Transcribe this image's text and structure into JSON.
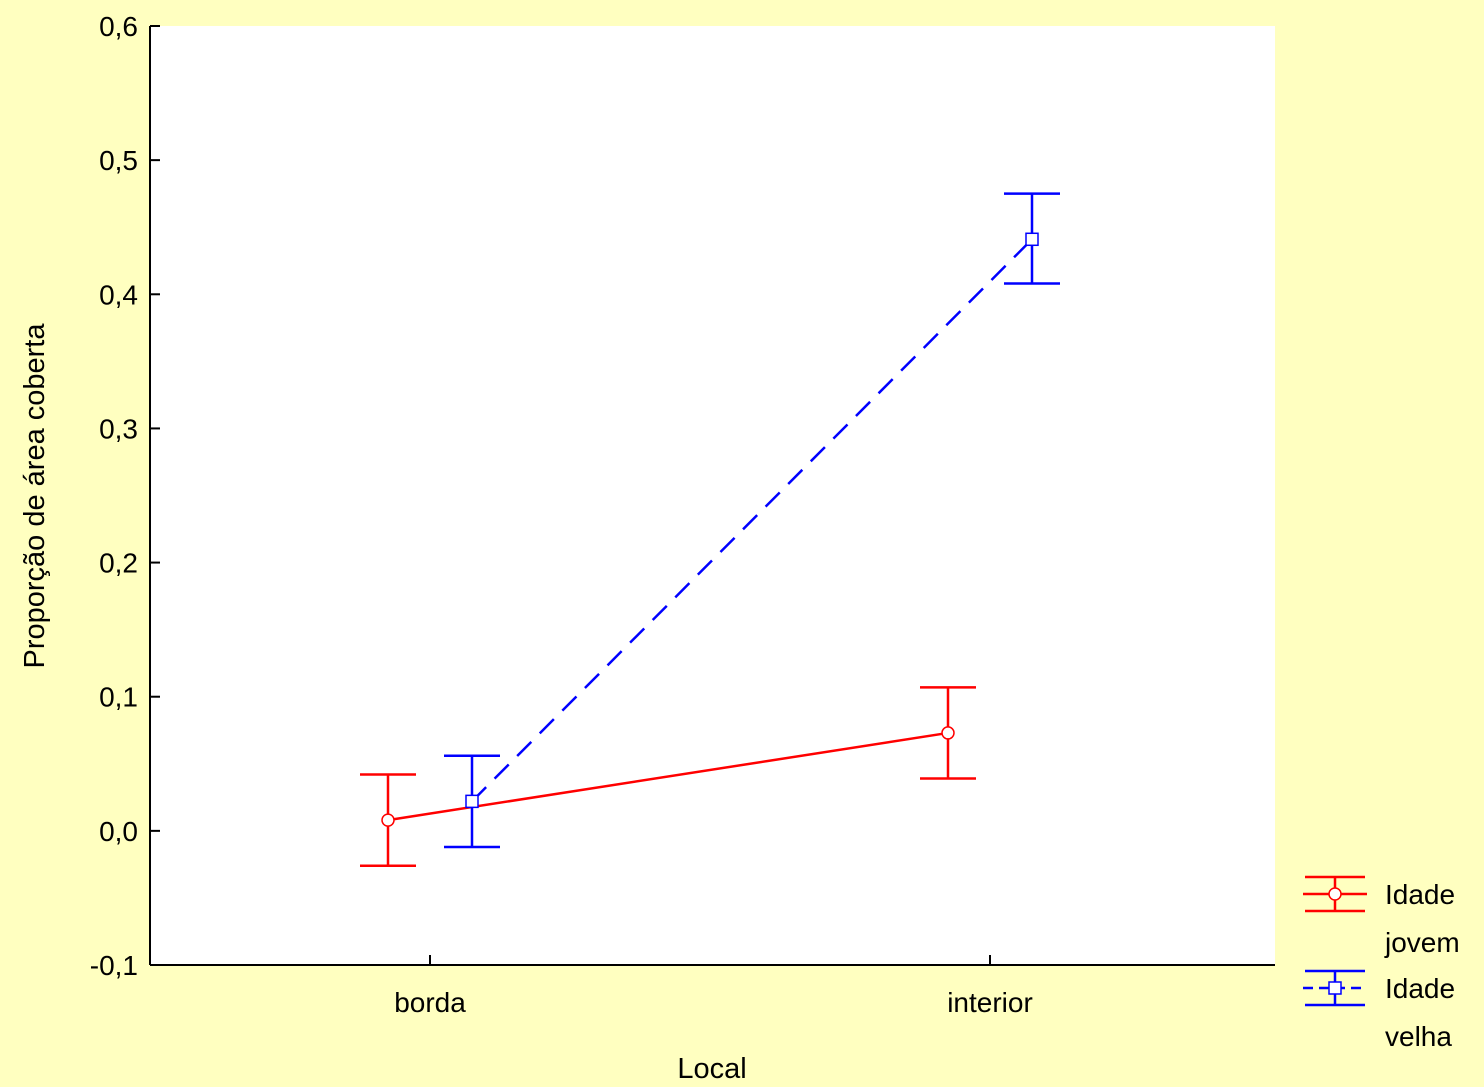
{
  "chart_data": {
    "type": "line",
    "title": "",
    "xlabel": "Local",
    "ylabel": "Proporção de área coberta",
    "categories": [
      "borda",
      "interior"
    ],
    "ylim": [
      -0.1,
      0.6
    ],
    "yticks": [
      -0.1,
      0.0,
      0.1,
      0.2,
      0.3,
      0.4,
      0.5,
      0.6
    ],
    "ytick_labels": [
      "-0,1",
      "0,0",
      "0,1",
      "0,2",
      "0,3",
      "0,4",
      "0,5",
      "0,6"
    ],
    "grid": false,
    "legend_position": "bottom-right outside",
    "series": [
      {
        "name": "Idade jovem",
        "legend_lines": [
          "Idade",
          "jovem"
        ],
        "color": "#ff0000",
        "line_style": "solid",
        "marker": "circle",
        "values": [
          0.008,
          0.073
        ],
        "lower": [
          -0.026,
          0.039
        ],
        "upper": [
          0.042,
          0.107
        ]
      },
      {
        "name": "Idade velha",
        "legend_lines": [
          "Idade",
          "velha"
        ],
        "color": "#0000ff",
        "line_style": "dashed",
        "marker": "square",
        "values": [
          0.022,
          0.441
        ],
        "lower": [
          -0.012,
          0.408
        ],
        "upper": [
          0.056,
          0.475
        ]
      }
    ]
  }
}
